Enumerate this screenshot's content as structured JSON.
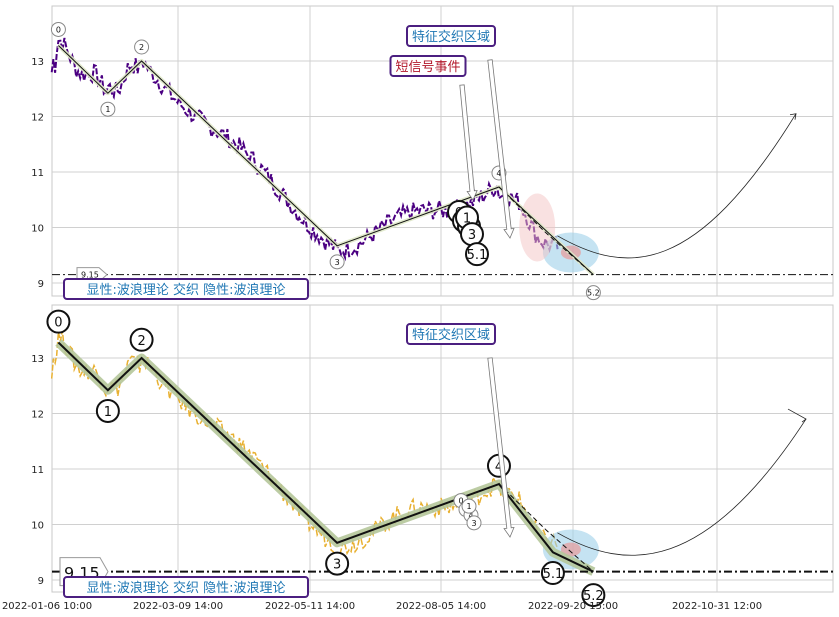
{
  "chart_data": [
    {
      "type": "line",
      "panel": "top",
      "price_series_color": "#4b0082",
      "y_ticks": [
        "13",
        "12",
        "11",
        "10",
        "9"
      ],
      "ylim": [
        8.75,
        14.0
      ],
      "grid": true,
      "waves": [
        {
          "label": "0",
          "date": "2022-01-11",
          "value": 13.28
        },
        {
          "label": "1",
          "date": "2022-02-02",
          "value": 12.42
        },
        {
          "label": "2",
          "date": "2022-02-17",
          "value": 13.0
        },
        {
          "label": "3",
          "date": "2022-05-15",
          "value": 9.67
        },
        {
          "label": "4",
          "date": "2022-07-26",
          "value": 10.73
        },
        {
          "label": "5.2",
          "date": "2022-09-06",
          "value": 9.15
        }
      ],
      "sub_waves": [
        "0",
        "2",
        "4",
        "1",
        "3",
        "5.1"
      ],
      "support_line": {
        "value": 9.15,
        "label": "9.15"
      },
      "annotations": {
        "feature_zone": "特征交织区域",
        "short_signal": "短信号事件",
        "note": "显性:波浪理论 交织 隐性:波浪理论"
      }
    },
    {
      "type": "line",
      "panel": "bottom",
      "price_series_color": "#e8b030",
      "y_ticks": [
        "13",
        "12",
        "11",
        "10",
        "9"
      ],
      "ylim": [
        8.75,
        14.0
      ],
      "grid": true,
      "x_ticks": [
        "2022-01-06 10:00",
        "2022-03-09 14:00",
        "2022-05-11 14:00",
        "2022-08-05 14:00",
        "2022-09-20 15:00",
        "2022-10-31 12:00"
      ],
      "waves": [
        {
          "label": "0",
          "date": "2022-01-11",
          "value": 13.28
        },
        {
          "label": "1",
          "date": "2022-02-02",
          "value": 12.42
        },
        {
          "label": "2",
          "date": "2022-02-17",
          "value": 13.0
        },
        {
          "label": "3",
          "date": "2022-05-15",
          "value": 9.67
        },
        {
          "label": "4",
          "date": "2022-07-26",
          "value": 10.73
        },
        {
          "label": "5.1",
          "date": "2022-08-19",
          "value": 9.5
        },
        {
          "label": "5.2",
          "date": "2022-09-06",
          "value": 9.15
        }
      ],
      "sub_waves": [
        "0",
        "2",
        "4",
        "1",
        "3"
      ],
      "support_line": {
        "value": 9.15,
        "label": "9.15"
      },
      "annotations": {
        "feature_zone": "特征交织区域",
        "note": "显性:波浪理论 交织 隐性:波浪理论"
      }
    }
  ]
}
